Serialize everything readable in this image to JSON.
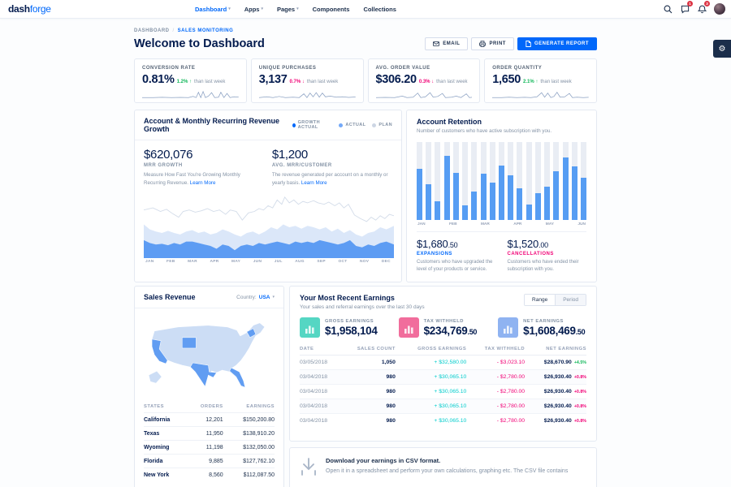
{
  "icons": {
    "gear": "⚙",
    "caret_down": "▾",
    "breadcrumb_sep": "/"
  },
  "navbar": {
    "logo": {
      "bold": "dash",
      "light": "forge"
    },
    "items": [
      {
        "label": "Dashboard",
        "active": true,
        "caret": true
      },
      {
        "label": "Apps",
        "active": false,
        "caret": true
      },
      {
        "label": "Pages",
        "active": false,
        "caret": true
      },
      {
        "label": "Components",
        "active": false,
        "caret": false
      },
      {
        "label": "Collections",
        "active": false,
        "caret": false
      }
    ],
    "badges": {
      "messages": "1",
      "notifications": "3"
    }
  },
  "page_header": {
    "breadcrumb": [
      "DASHBOARD",
      "SALES MONITORING"
    ],
    "title": "Welcome to Dashboard",
    "actions": {
      "email": "EMAIL",
      "print": "PRINT",
      "generate": "GENERATE REPORT"
    }
  },
  "kpis": [
    {
      "label": "CONVERSION RATE",
      "value": "0.81%",
      "change": "1.2% ↑",
      "change_color": "#10b759",
      "suffix": "than last week"
    },
    {
      "label": "UNIQUE PURCHASES",
      "value": "3,137",
      "change": "0.7% ↓",
      "change_color": "#f10075",
      "suffix": "than last week"
    },
    {
      "label": "AVG. ORDER VALUE",
      "value": "$306.20",
      "change": "0.3% ↓",
      "change_color": "#f10075",
      "suffix": "than last week"
    },
    {
      "label": "ORDER QUANTITY",
      "value": "1,650",
      "change": "2.1% ↑",
      "change_color": "#10b759",
      "suffix": "than last week"
    }
  ],
  "mrr": {
    "title": "Account & Monthly Recurring Revenue Growth",
    "legend": [
      {
        "label": "GROWTH ACTUAL",
        "color": "#0168fa"
      },
      {
        "label": "ACTUAL",
        "color": "#74a9f8"
      },
      {
        "label": "PLAN",
        "color": "#cdd6e4"
      }
    ],
    "stats": [
      {
        "value": "$620,076",
        "label": "MRR GROWTH",
        "desc": "Measure How Fast You're Growing Monthly Recurring Revenue. ",
        "link": "Learn More"
      },
      {
        "value": "$1,200",
        "label": "AVG. MRR/CUSTOMER",
        "desc": "The revenue generated per account on a monthly or yearly basis. ",
        "link": "Learn More"
      }
    ],
    "months": [
      "JAN",
      "FEB",
      "MAR",
      "APR",
      "MAY",
      "JUN",
      "JUL",
      "AUG",
      "SEP",
      "OCT",
      "NOV",
      "DEC"
    ]
  },
  "retention": {
    "title": "Account Retention",
    "subtitle": "Number of customers who have active subscription with you.",
    "bars": [
      66,
      46,
      24,
      82,
      60,
      19,
      36,
      59,
      48,
      70,
      57,
      41,
      20,
      34,
      43,
      62,
      80,
      69,
      54
    ],
    "months": [
      "JAN",
      "FEB",
      "MAR",
      "APR",
      "MAY",
      "JUN"
    ],
    "stats": [
      {
        "value": "$1,680",
        "cents": ".50",
        "label": "EXPANSIONS",
        "label_color": "#0168fa",
        "desc": "Customers who have upgraded the level of your products or service."
      },
      {
        "value": "$1,520",
        "cents": ".00",
        "label": "CANCELLATIONS",
        "label_color": "#f10075",
        "desc": "Customers who have ended their subscription with you."
      }
    ]
  },
  "sales_revenue": {
    "title": "Sales Revenue",
    "country_label": "Country:",
    "country_value": "USA",
    "table": {
      "headers": [
        "STATES",
        "ORDERS",
        "EARNINGS"
      ],
      "rows": [
        {
          "state": "California",
          "orders": "12,201",
          "earnings": "$150,200.80"
        },
        {
          "state": "Texas",
          "orders": "11,950",
          "earnings": "$138,910.20"
        },
        {
          "state": "Wyoming",
          "orders": "11,198",
          "earnings": "$132,050.00"
        },
        {
          "state": "Florida",
          "orders": "9,885",
          "earnings": "$127,762.10"
        },
        {
          "state": "New York",
          "orders": "8,560",
          "earnings": "$112,087.50"
        }
      ]
    }
  },
  "earnings": {
    "title": "Your Most Recent Earnings",
    "subtitle": "Your sales and referral earnings over the last 30 days",
    "toggle": {
      "range": "Range",
      "period": "Period"
    },
    "summary": [
      {
        "label": "GROSS EARNINGS",
        "value": "$1,958,104",
        "cents": "",
        "color": "#55d6c3"
      },
      {
        "label": "TAX WITHHELD",
        "value": "$234,769",
        "cents": ".50",
        "color": "#f16d9c"
      },
      {
        "label": "NET EARNINGS",
        "value": "$1,608,469",
        "cents": ".50",
        "color": "#8fb3f1"
      }
    ],
    "table": {
      "headers": [
        "DATE",
        "SALES COUNT",
        "GROSS EARNINGS",
        "TAX WITHHELD",
        "NET EARNINGS"
      ],
      "rows": [
        {
          "date": "03/05/2018",
          "count": "1,050",
          "gross": "+ $32,580.00",
          "tax": "- $3,023.10",
          "net": "$28,670.90",
          "pct": "+4.5%",
          "pct_color": "#10b759"
        },
        {
          "date": "03/04/2018",
          "count": "980",
          "gross": "+ $30,065.10",
          "tax": "- $2,780.00",
          "net": "$26,930.40",
          "pct": "+0.8%",
          "pct_color": "#f10075"
        },
        {
          "date": "03/04/2018",
          "count": "980",
          "gross": "+ $30,065.10",
          "tax": "- $2,780.00",
          "net": "$26,930.40",
          "pct": "+0.8%",
          "pct_color": "#f10075"
        },
        {
          "date": "03/04/2018",
          "count": "980",
          "gross": "+ $30,065.10",
          "tax": "- $2,780.00",
          "net": "$26,930.40",
          "pct": "+0.8%",
          "pct_color": "#f10075"
        },
        {
          "date": "03/04/2018",
          "count": "980",
          "gross": "+ $30,065.10",
          "tax": "- $2,780.00",
          "net": "$26,930.40",
          "pct": "+0.8%",
          "pct_color": "#f10075"
        }
      ]
    }
  },
  "csv": {
    "title": "Download your earnings in CSV format.",
    "desc": "Open it in a spreadsheet and perform your own calculations, graphing etc. The CSV file contains"
  }
}
